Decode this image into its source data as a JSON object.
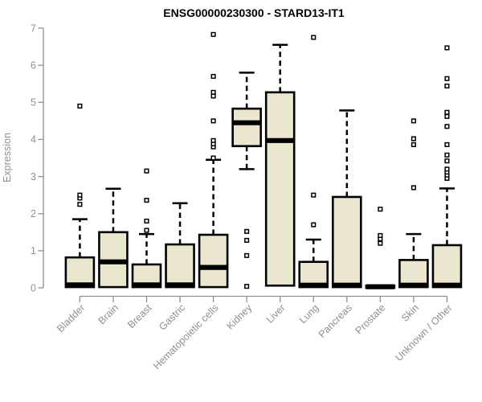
{
  "chart_data": {
    "type": "boxplot",
    "title": "ENSG00000230300 - STARD13-IT1",
    "xlabel": "",
    "ylabel": "Expression",
    "ylim": [
      0,
      7
    ],
    "yticks": [
      0,
      1,
      2,
      3,
      4,
      5,
      6,
      7
    ],
    "grid": false,
    "legend": null,
    "outlier_marker": "open-square",
    "colors": {
      "box_fill": "#ebe6ce",
      "box_border": "#000000",
      "median": "#000000",
      "whisker": "#000000",
      "axis": "#8f8f8f",
      "tick_text": "#8f8f8f",
      "title_text": "#000000",
      "background": "#ffffff"
    },
    "categories": [
      "Bladder",
      "Brain",
      "Breast",
      "Gastric",
      "Hematopoietic cells",
      "Kidney",
      "Liver",
      "Lung",
      "Pancreas",
      "Prostate",
      "Skin",
      "Unknown / Other"
    ],
    "series": [
      {
        "name": "Bladder",
        "q1": 0.02,
        "median": 0.08,
        "q3": 0.82,
        "whisker_low": null,
        "whisker_high": 1.85,
        "outliers": [
          2.25,
          2.42,
          2.5,
          4.9
        ]
      },
      {
        "name": "Brain",
        "q1": 0.02,
        "median": 0.7,
        "q3": 1.5,
        "whisker_low": null,
        "whisker_high": 2.67,
        "outliers": []
      },
      {
        "name": "Breast",
        "q1": 0.02,
        "median": 0.08,
        "q3": 0.63,
        "whisker_low": null,
        "whisker_high": 1.45,
        "outliers": [
          1.55,
          1.8,
          2.36,
          3.15
        ]
      },
      {
        "name": "Gastric",
        "q1": 0.02,
        "median": 0.08,
        "q3": 1.17,
        "whisker_low": null,
        "whisker_high": 2.28,
        "outliers": []
      },
      {
        "name": "Hematopoietic cells",
        "q1": 0.02,
        "median": 0.55,
        "q3": 1.43,
        "whisker_low": null,
        "whisker_high": 3.45,
        "outliers": [
          3.5,
          3.8,
          3.88,
          3.97,
          4.5,
          5.17,
          5.27,
          5.7,
          6.83
        ]
      },
      {
        "name": "Kidney",
        "q1": 3.82,
        "median": 4.45,
        "q3": 4.83,
        "whisker_low": 3.2,
        "whisker_high": 5.8,
        "outliers": [
          0.04,
          0.87,
          1.28,
          1.52
        ]
      },
      {
        "name": "Liver",
        "q1": 0.06,
        "median": 3.97,
        "q3": 5.27,
        "whisker_low": null,
        "whisker_high": 6.55,
        "outliers": []
      },
      {
        "name": "Lung",
        "q1": 0.02,
        "median": 0.07,
        "q3": 0.7,
        "whisker_low": null,
        "whisker_high": 1.3,
        "outliers": [
          1.7,
          2.5,
          6.75
        ]
      },
      {
        "name": "Pancreas",
        "q1": 0.02,
        "median": 0.07,
        "q3": 2.45,
        "whisker_low": null,
        "whisker_high": 4.78,
        "outliers": []
      },
      {
        "name": "Prostate",
        "q1": 0.0,
        "median": 0.03,
        "q3": 0.06,
        "whisker_low": null,
        "whisker_high": null,
        "outliers": [
          1.2,
          1.32,
          1.41,
          2.12
        ]
      },
      {
        "name": "Skin",
        "q1": 0.02,
        "median": 0.07,
        "q3": 0.75,
        "whisker_low": null,
        "whisker_high": 1.45,
        "outliers": [
          2.7,
          3.86,
          4.02,
          4.5
        ]
      },
      {
        "name": "Unknown / Other",
        "q1": 0.02,
        "median": 0.07,
        "q3": 1.15,
        "whisker_low": null,
        "whisker_high": 2.68,
        "outliers": [
          2.95,
          3.04,
          3.12,
          3.2,
          3.42,
          3.58,
          3.86,
          4.35,
          4.62,
          4.73,
          5.44,
          5.64,
          6.47
        ]
      }
    ]
  }
}
